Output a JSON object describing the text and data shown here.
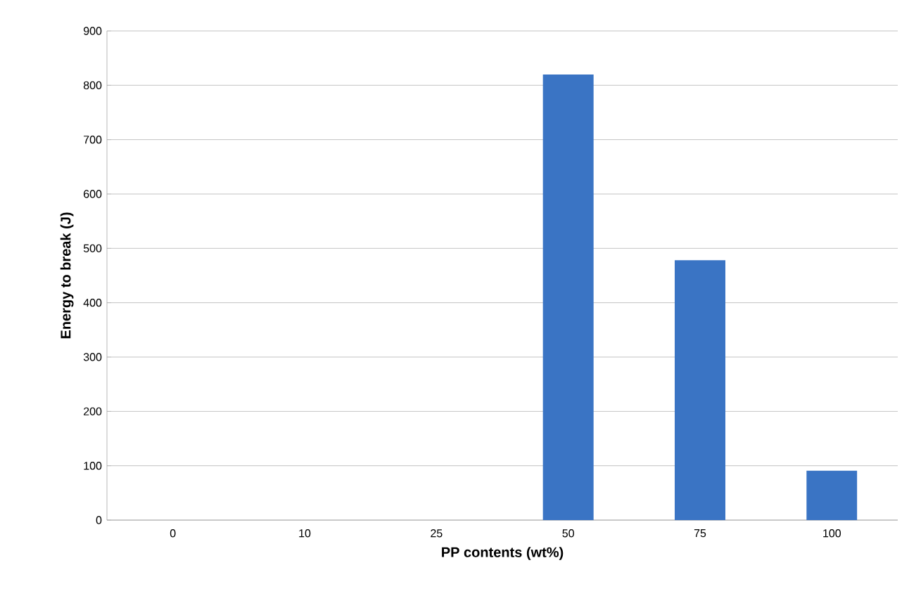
{
  "chart_data": {
    "type": "bar",
    "xlabel": "PP contents (wt%)",
    "ylabel": "Energy to break (J)",
    "categories": [
      "0",
      "10",
      "25",
      "50",
      "75",
      "100"
    ],
    "values": [
      null,
      null,
      null,
      820,
      478,
      91
    ],
    "color": "#3a74c4",
    "ylim": [
      0,
      900
    ],
    "yticks": [
      0,
      100,
      200,
      300,
      400,
      500,
      600,
      700,
      800,
      900
    ],
    "grid": "y"
  }
}
